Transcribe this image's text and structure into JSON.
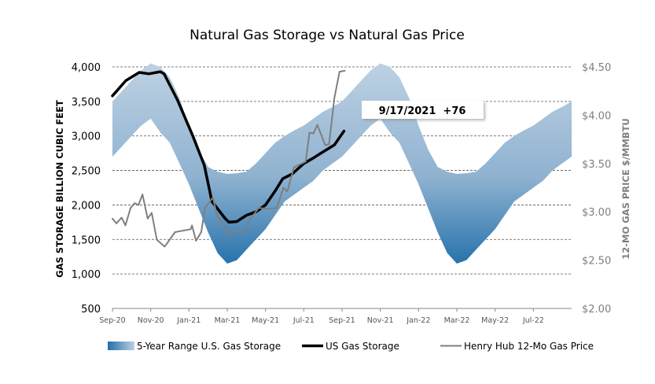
{
  "chart_data": {
    "type": "line",
    "title": "Natural Gas Storage vs Natural Gas Price",
    "ylabel": "GAS STORAGE BILLION CUBIC FEET",
    "y2label": "12-MO GAS PRICE $/MMBTU",
    "x_unit": "months since Sep-20",
    "xlim": [
      0,
      24
    ],
    "ylim": [
      500,
      4000
    ],
    "y2lim": [
      2.0,
      4.5
    ],
    "grid": true,
    "legend_position": "bottom",
    "x_ticks": [
      {
        "x": 0,
        "label": "Sep-20"
      },
      {
        "x": 2,
        "label": "Nov-20"
      },
      {
        "x": 4,
        "label": "Jan-21"
      },
      {
        "x": 6,
        "label": "Mar-21"
      },
      {
        "x": 8,
        "label": "May-21"
      },
      {
        "x": 10,
        "label": "Jul-21"
      },
      {
        "x": 12,
        "label": "Sep-21"
      },
      {
        "x": 14,
        "label": "Nov-21"
      },
      {
        "x": 16,
        "label": "Jan-22"
      },
      {
        "x": 18,
        "label": "Mar-22"
      },
      {
        "x": 20,
        "label": "May-22"
      },
      {
        "x": 22,
        "label": "Jul-22"
      }
    ],
    "y_ticks": [
      "500",
      "1,000",
      "1,500",
      "2,000",
      "2,500",
      "3,000",
      "3,500",
      "4,000"
    ],
    "y_tick_values": [
      500,
      1000,
      1500,
      2000,
      2500,
      3000,
      3500,
      4000
    ],
    "y2_ticks": [
      "$2.00",
      "$2.50",
      "$3.00",
      "$3.50",
      "$4.00",
      "$4.50"
    ],
    "y2_tick_values": [
      2.0,
      2.5,
      3.0,
      3.5,
      4.0,
      4.5
    ],
    "band": {
      "name": "5-Year Range U.S. Gas Storage",
      "color_light": "#bcd0e2",
      "color_dark": "#2270aa",
      "x_step": 0.5,
      "lower": [
        2700,
        2850,
        3000,
        3150,
        3250,
        3050,
        2900,
        2600,
        2300,
        1950,
        1600,
        1300,
        1150,
        1200,
        1350,
        1500,
        1650,
        1850,
        2050,
        2150,
        2250,
        2350,
        2500,
        2600,
        2700,
        2850,
        3000,
        3150,
        3250,
        3050,
        2900,
        2600,
        2300,
        1950,
        1600,
        1300,
        1150,
        1200,
        1350,
        1500,
        1650,
        1850,
        2050,
        2150,
        2250,
        2350,
        2500,
        2600,
        2700
      ],
      "upper": [
        3500,
        3650,
        3800,
        3950,
        4050,
        4000,
        3850,
        3550,
        3150,
        2800,
        2550,
        2480,
        2450,
        2460,
        2480,
        2600,
        2750,
        2900,
        3000,
        3080,
        3150,
        3250,
        3350,
        3420,
        3500,
        3650,
        3800,
        3950,
        4050,
        4000,
        3850,
        3550,
        3150,
        2800,
        2550,
        2480,
        2450,
        2460,
        2480,
        2600,
        2750,
        2900,
        3000,
        3080,
        3150,
        3250,
        3350,
        3420,
        3500
      ]
    },
    "series": [
      {
        "name": "US Gas Storage",
        "axis": "left",
        "color": "#000000",
        "x": [
          0,
          0.7,
          1.4,
          1.9,
          2.5,
          2.7,
          3.4,
          4.2,
          4.8,
          5.2,
          5.9,
          6.1,
          6.5,
          7.0,
          7.5,
          8.0,
          8.5,
          8.9,
          9.4,
          10.0,
          10.5,
          10.9,
          11.6,
          12.1
        ],
        "y": [
          3580,
          3800,
          3920,
          3900,
          3930,
          3900,
          3520,
          3000,
          2575,
          2050,
          1800,
          1750,
          1760,
          1850,
          1900,
          2000,
          2200,
          2380,
          2450,
          2600,
          2680,
          2750,
          2870,
          3070
        ]
      },
      {
        "name": "Henry Hub 12-Mo Gas Price",
        "axis": "right",
        "color": "#7f7f7f",
        "x": [
          0,
          0.2,
          0.48,
          0.68,
          0.95,
          1.16,
          1.36,
          1.57,
          1.84,
          2.05,
          2.32,
          2.73,
          3.27,
          4.09,
          4.16,
          4.37,
          4.64,
          4.84,
          5.25,
          5.46,
          6.14,
          6.41,
          6.82,
          7.23,
          7.64,
          8.19,
          8.59,
          8.94,
          9.14,
          9.48,
          10.1,
          10.3,
          10.5,
          10.71,
          11.12,
          11.32,
          11.6,
          11.87,
          12.14
        ],
        "y": [
          2.93,
          2.88,
          2.94,
          2.86,
          3.04,
          3.09,
          3.07,
          3.18,
          2.93,
          2.99,
          2.71,
          2.64,
          2.79,
          2.82,
          2.86,
          2.7,
          2.79,
          3.04,
          3.15,
          2.96,
          2.76,
          2.81,
          2.78,
          2.93,
          3.04,
          3.03,
          3.04,
          3.25,
          3.21,
          3.46,
          3.52,
          3.82,
          3.81,
          3.9,
          3.69,
          3.7,
          4.18,
          4.45,
          4.46
        ]
      }
    ],
    "annotation": {
      "text": "9/17/2021  +76"
    }
  }
}
